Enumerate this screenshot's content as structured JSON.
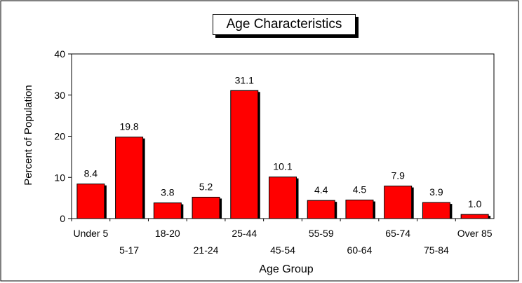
{
  "chart_data": {
    "type": "bar",
    "title": "Age Characteristics",
    "xlabel": "Age Group",
    "ylabel": "Percent of Population",
    "categories": [
      "Under 5",
      "5-17",
      "18-20",
      "21-24",
      "25-44",
      "45-54",
      "55-59",
      "60-64",
      "65-74",
      "75-84",
      "Over 85"
    ],
    "values": [
      8.4,
      19.8,
      3.8,
      5.2,
      31.1,
      10.1,
      4.4,
      4.5,
      7.9,
      3.9,
      1.0
    ],
    "value_labels": [
      "8.4",
      "19.8",
      "3.8",
      "5.2",
      "31.1",
      "10.1",
      "4.4",
      "4.5",
      "7.9",
      "3.9",
      "1.0"
    ],
    "ylim": [
      0,
      40
    ],
    "yticks": [
      "0",
      "10",
      "20",
      "30",
      "40"
    ],
    "bar_color": "#ff0000",
    "grid": false,
    "legend": "none"
  }
}
